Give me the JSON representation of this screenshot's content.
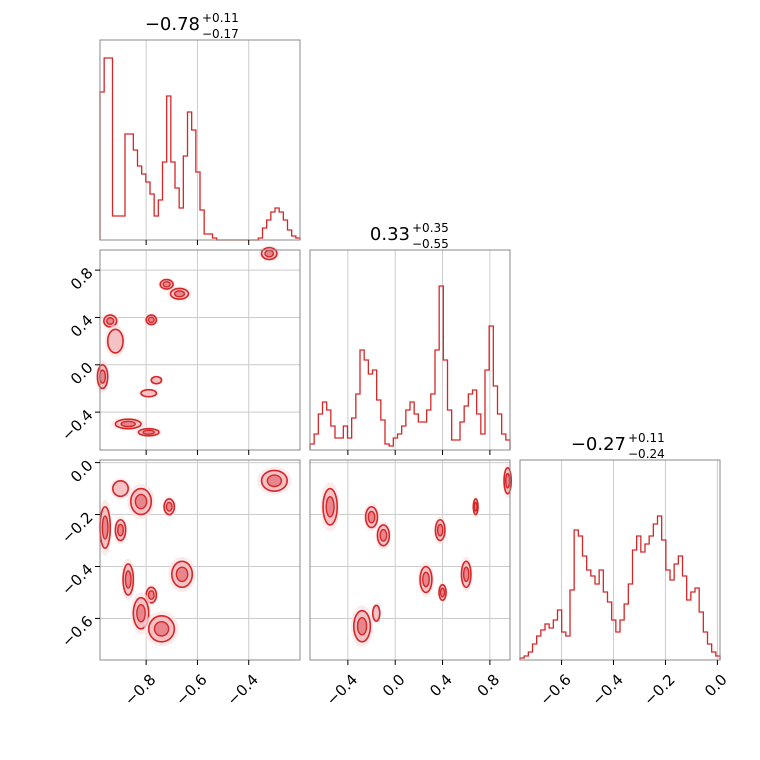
{
  "chart_data": {
    "type": "corner",
    "color": "#d62728",
    "fill_color": "#f4c2c5",
    "grid": true,
    "titles": [
      {
        "value": "−0.78",
        "plus": "+0.11",
        "minus": "−0.17"
      },
      {
        "value": "0.33",
        "plus": "+0.35",
        "minus": "−0.55"
      },
      {
        "value": "−0.27",
        "plus": "+0.11",
        "minus": "−0.24"
      }
    ],
    "ranges": [
      [
        -0.98,
        -0.2
      ],
      [
        -0.72,
        0.97
      ],
      [
        -0.76,
        0.01
      ]
    ],
    "ticks": [
      {
        "values": [
          -0.8,
          -0.6,
          -0.4
        ],
        "labels": [
          "−0.8",
          "−0.6",
          "−0.4"
        ]
      },
      {
        "values": [
          -0.4,
          0.0,
          0.4,
          0.8
        ],
        "labels": [
          "−0.4",
          "0.0",
          "0.4",
          "0.8"
        ]
      },
      {
        "values": [
          -0.6,
          -0.4,
          -0.2,
          0.0
        ],
        "labels": [
          "−0.6",
          "−0.4",
          "−0.2",
          "0.0"
        ]
      }
    ],
    "histograms": [
      {
        "bins": 48,
        "counts": [
          0.74,
          0.91,
          0.91,
          0.12,
          0.12,
          0.12,
          0.53,
          0.53,
          0.45,
          0.37,
          0.33,
          0.29,
          0.23,
          0.12,
          0.2,
          0.39,
          0.72,
          0.39,
          0.26,
          0.16,
          0.42,
          0.64,
          0.55,
          0.34,
          0.15,
          0.03,
          0.03,
          0.01,
          0.0,
          0.0,
          0.0,
          0.0,
          0.0,
          0.0,
          0.0,
          0.0,
          0.0,
          0.0,
          0.01,
          0.06,
          0.1,
          0.14,
          0.16,
          0.14,
          0.1,
          0.05,
          0.02,
          0.01
        ]
      },
      {
        "bins": 48,
        "counts": [
          0.03,
          0.08,
          0.18,
          0.24,
          0.2,
          0.12,
          0.06,
          0.06,
          0.12,
          0.06,
          0.16,
          0.28,
          0.5,
          0.45,
          0.38,
          0.4,
          0.25,
          0.15,
          0.03,
          0.02,
          0.06,
          0.08,
          0.12,
          0.2,
          0.24,
          0.18,
          0.14,
          0.14,
          0.2,
          0.28,
          0.5,
          0.82,
          0.45,
          0.2,
          0.05,
          0.05,
          0.14,
          0.22,
          0.28,
          0.3,
          0.18,
          0.08,
          0.4,
          0.62,
          0.32,
          0.18,
          0.08,
          0.05
        ]
      },
      {
        "bins": 48,
        "counts": [
          0.01,
          0.02,
          0.04,
          0.08,
          0.12,
          0.15,
          0.18,
          0.16,
          0.2,
          0.25,
          0.14,
          0.12,
          0.35,
          0.65,
          0.62,
          0.52,
          0.45,
          0.42,
          0.38,
          0.45,
          0.34,
          0.29,
          0.2,
          0.14,
          0.2,
          0.28,
          0.38,
          0.55,
          0.62,
          0.54,
          0.58,
          0.62,
          0.68,
          0.72,
          0.6,
          0.45,
          0.4,
          0.48,
          0.52,
          0.42,
          0.3,
          0.34,
          0.36,
          0.24,
          0.14,
          0.08,
          0.04,
          0.02
        ]
      }
    ],
    "panels": [
      {
        "x": 0,
        "y": 1,
        "blobs": [
          {
            "x": -0.32,
            "y": 0.94,
            "rx": 0.03,
            "ry": 0.05,
            "level": 2
          },
          {
            "x": -0.72,
            "y": 0.68,
            "rx": 0.025,
            "ry": 0.04,
            "level": 2
          },
          {
            "x": -0.67,
            "y": 0.6,
            "rx": 0.035,
            "ry": 0.045,
            "level": 2
          },
          {
            "x": -0.94,
            "y": 0.37,
            "rx": 0.025,
            "ry": 0.05,
            "level": 2
          },
          {
            "x": -0.78,
            "y": 0.38,
            "rx": 0.02,
            "ry": 0.04,
            "level": 2
          },
          {
            "x": -0.92,
            "y": 0.2,
            "rx": 0.03,
            "ry": 0.1,
            "level": 1
          },
          {
            "x": -0.97,
            "y": -0.1,
            "rx": 0.02,
            "ry": 0.1,
            "level": 2
          },
          {
            "x": -0.76,
            "y": -0.13,
            "rx": 0.02,
            "ry": 0.03,
            "level": 1
          },
          {
            "x": -0.79,
            "y": -0.24,
            "rx": 0.03,
            "ry": 0.03,
            "level": 1
          },
          {
            "x": -0.87,
            "y": -0.5,
            "rx": 0.05,
            "ry": 0.04,
            "level": 2
          },
          {
            "x": -0.79,
            "y": -0.57,
            "rx": 0.04,
            "ry": 0.03,
            "level": 2
          }
        ]
      },
      {
        "x": 0,
        "y": 2,
        "blobs": [
          {
            "x": -0.3,
            "y": -0.07,
            "rx": 0.05,
            "ry": 0.04,
            "level": 2
          },
          {
            "x": -0.9,
            "y": -0.1,
            "rx": 0.03,
            "ry": 0.03,
            "level": 1
          },
          {
            "x": -0.82,
            "y": -0.15,
            "rx": 0.04,
            "ry": 0.05,
            "level": 2
          },
          {
            "x": -0.71,
            "y": -0.17,
            "rx": 0.02,
            "ry": 0.03,
            "level": 2
          },
          {
            "x": -0.96,
            "y": -0.25,
            "rx": 0.02,
            "ry": 0.08,
            "level": 2
          },
          {
            "x": -0.9,
            "y": -0.26,
            "rx": 0.02,
            "ry": 0.04,
            "level": 2
          },
          {
            "x": -0.66,
            "y": -0.43,
            "rx": 0.04,
            "ry": 0.05,
            "level": 2
          },
          {
            "x": -0.87,
            "y": -0.45,
            "rx": 0.02,
            "ry": 0.06,
            "level": 2
          },
          {
            "x": -0.78,
            "y": -0.51,
            "rx": 0.02,
            "ry": 0.03,
            "level": 2
          },
          {
            "x": -0.82,
            "y": -0.58,
            "rx": 0.03,
            "ry": 0.06,
            "level": 2
          },
          {
            "x": -0.74,
            "y": -0.64,
            "rx": 0.05,
            "ry": 0.05,
            "level": 2
          }
        ]
      },
      {
        "x": 1,
        "y": 2,
        "blobs": [
          {
            "x": -0.55,
            "y": -0.17,
            "rx": 0.06,
            "ry": 0.07,
            "level": 2
          },
          {
            "x": -0.2,
            "y": -0.21,
            "rx": 0.05,
            "ry": 0.04,
            "level": 2
          },
          {
            "x": -0.1,
            "y": -0.28,
            "rx": 0.05,
            "ry": 0.04,
            "level": 2
          },
          {
            "x": 0.38,
            "y": -0.26,
            "rx": 0.04,
            "ry": 0.04,
            "level": 2
          },
          {
            "x": 0.68,
            "y": -0.17,
            "rx": 0.02,
            "ry": 0.03,
            "level": 2
          },
          {
            "x": 0.95,
            "y": -0.07,
            "rx": 0.03,
            "ry": 0.05,
            "level": 2
          },
          {
            "x": 0.26,
            "y": -0.45,
            "rx": 0.05,
            "ry": 0.05,
            "level": 2
          },
          {
            "x": 0.4,
            "y": -0.5,
            "rx": 0.03,
            "ry": 0.03,
            "level": 2
          },
          {
            "x": 0.6,
            "y": -0.43,
            "rx": 0.04,
            "ry": 0.05,
            "level": 2
          },
          {
            "x": -0.28,
            "y": -0.63,
            "rx": 0.07,
            "ry": 0.06,
            "level": 2
          },
          {
            "x": -0.16,
            "y": -0.58,
            "rx": 0.03,
            "ry": 0.03,
            "level": 1
          }
        ]
      }
    ]
  }
}
